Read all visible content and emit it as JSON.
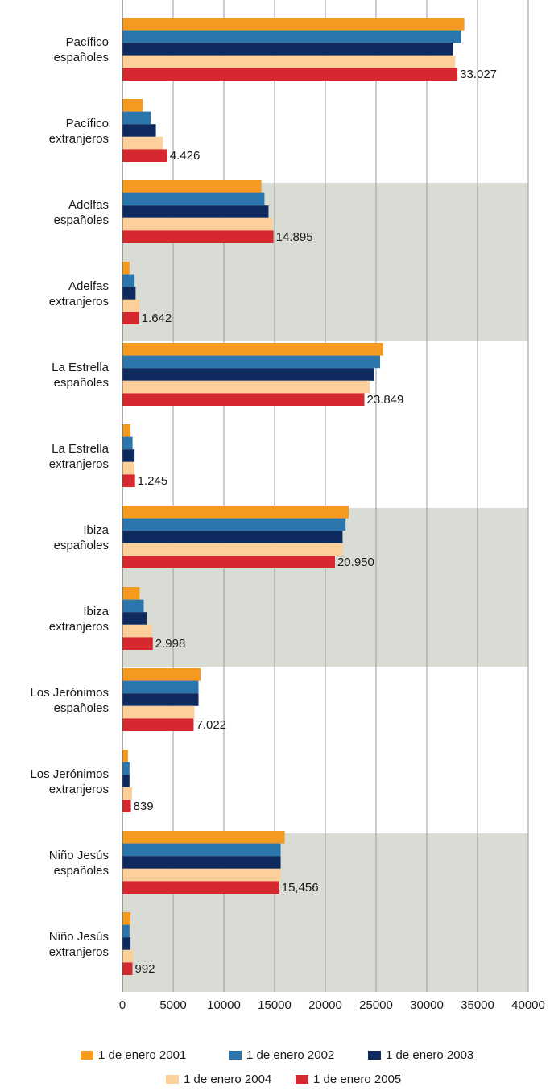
{
  "chart_data": {
    "type": "barh",
    "categories": [
      "Pacífico\nespañoles",
      "Pacífico\nextranjeros",
      "Adelfas\nespañoles",
      "Adelfas\nextranjeros",
      "La Estrella\nespañoles",
      "La Estrella\nextranjeros",
      "Ibiza\nespañoles",
      "Ibiza\nextranjeros",
      "Los Jerónimos\nespañoles",
      "Los Jerónimos\nextranjeros",
      "Niño Jesús\nespañoles",
      "Niño Jesús\nextranjeros"
    ],
    "series": [
      {
        "name": "1 de enero 2001",
        "color": "#f59a1e",
        "values": [
          33700,
          2000,
          13700,
          700,
          25700,
          800,
          22300,
          1700,
          7700,
          550,
          16000,
          800
        ]
      },
      {
        "name": "1 de enero 2002",
        "color": "#2a76ad",
        "values": [
          33400,
          2800,
          14000,
          1200,
          25400,
          1000,
          22000,
          2100,
          7500,
          700,
          15600,
          700
        ]
      },
      {
        "name": "1 de enero 2003",
        "color": "#0f2a5e",
        "values": [
          32600,
          3300,
          14400,
          1300,
          24800,
          1200,
          21700,
          2400,
          7500,
          700,
          15600,
          800
        ]
      },
      {
        "name": "1 de enero 2004",
        "color": "#fdcf9a",
        "values": [
          32800,
          4000,
          14800,
          1700,
          24400,
          1200,
          21700,
          2900,
          7100,
          950,
          15600,
          1100
        ]
      },
      {
        "name": "1 de enero 2005",
        "color": "#d7282f",
        "values": [
          33027,
          4426,
          14895,
          1642,
          23849,
          1245,
          20950,
          2998,
          7022,
          839,
          15456,
          992
        ],
        "value_labels": [
          "33.027",
          "4.426",
          "14.895",
          "1.642",
          "23.849",
          "1.245",
          "20.950",
          "2.998",
          "7.022",
          "839",
          "15,456",
          "992"
        ]
      }
    ],
    "xlim": [
      0,
      40000
    ],
    "xticks": [
      0,
      5000,
      10000,
      15000,
      20000,
      25000,
      30000,
      35000,
      40000
    ],
    "grid": true,
    "legend": "bottom"
  }
}
